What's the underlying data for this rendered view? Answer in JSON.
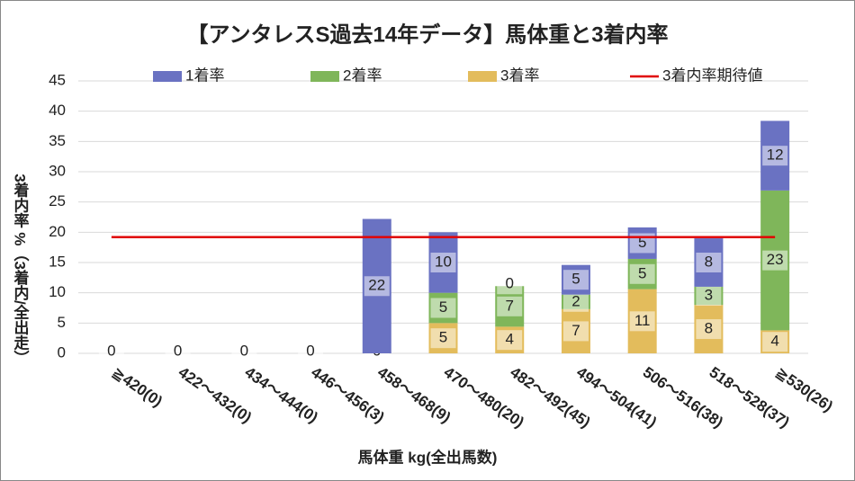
{
  "chart_data": {
    "type": "bar",
    "stacked": true,
    "title": "【アンタレスS過去14年データ】馬体重と3着内率",
    "x_label": "馬体重 kg(全出馬数)",
    "y_label": "3着内率 %（3着内/全出走）",
    "categories": [
      "≧420(0)",
      "422～432(0)",
      "434～444(0)",
      "446～456(3)",
      "458～468(9)",
      "470～480(20)",
      "482～492(45)",
      "494～504(41)",
      "506～516(38)",
      "518～528(37)",
      "≧530(26)"
    ],
    "series": [
      {
        "name": "3着率",
        "color": "#e3bc5c",
        "values": [
          0,
          0,
          0,
          0,
          0,
          5,
          4.4,
          7.3,
          10.6,
          8.0,
          3.8
        ],
        "value_labels": [
          null,
          null,
          null,
          null,
          "0",
          "5",
          "4",
          "7",
          "11",
          "8",
          "4"
        ]
      },
      {
        "name": "2着率",
        "color": "#7fb65a",
        "values": [
          0,
          0,
          0,
          0,
          0,
          5,
          6.7,
          2.4,
          5.0,
          3.0,
          23.1
        ],
        "value_labels": [
          null,
          null,
          null,
          null,
          null,
          "5",
          "7",
          "2",
          "5",
          "3",
          "23"
        ]
      },
      {
        "name": "1着率",
        "color": "#6a72c2",
        "values": [
          0,
          0,
          0,
          0,
          22.2,
          10,
          0,
          4.9,
          5.2,
          8.0,
          11.5
        ],
        "value_labels": [
          "0",
          "0",
          "0",
          "0",
          "22",
          "10",
          "0",
          "5",
          "5",
          "8",
          "12"
        ]
      },
      {
        "name": "3着内率期待値",
        "type": "line",
        "color": "#e00000",
        "values": [
          19.2,
          19.2,
          19.2,
          19.2,
          19.2,
          19.2,
          19.2,
          19.2,
          19.2,
          19.2,
          19.2
        ]
      }
    ],
    "legend_order": [
      2,
      1,
      0,
      3
    ],
    "ylim": [
      0,
      45
    ],
    "yticks": [
      0,
      5,
      10,
      15,
      20,
      25,
      30,
      35,
      40,
      45
    ],
    "grid": true
  }
}
